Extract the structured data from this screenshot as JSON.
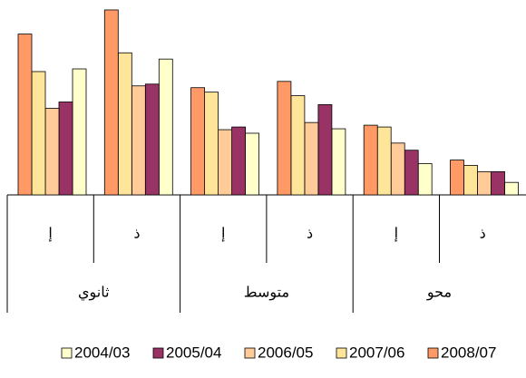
{
  "chart_data": {
    "type": "bar",
    "categories": [
      "إ",
      "ذ",
      "إ",
      "ذ",
      "إ",
      "ذ"
    ],
    "groups": [
      "ثانوي",
      "متوسط",
      "محو"
    ],
    "series": [
      {
        "name": "2004/03",
        "color": "#ffffcc",
        "values": [
          141,
          152,
          69,
          74,
          35,
          14
        ]
      },
      {
        "name": "2005/04",
        "color": "#993366",
        "values": [
          104,
          124,
          76,
          101,
          50,
          26
        ]
      },
      {
        "name": "2006/05",
        "color": "#ffcc99",
        "values": [
          97,
          122,
          73,
          81,
          58,
          26
        ]
      },
      {
        "name": "2007/06",
        "color": "#ffe599",
        "values": [
          138,
          159,
          115,
          111,
          76,
          33
        ]
      },
      {
        "name": "2008/07",
        "color": "#ff9966",
        "values": [
          180,
          207,
          120,
          127,
          78,
          39
        ]
      }
    ],
    "ylim": [
      0,
      210
    ]
  }
}
